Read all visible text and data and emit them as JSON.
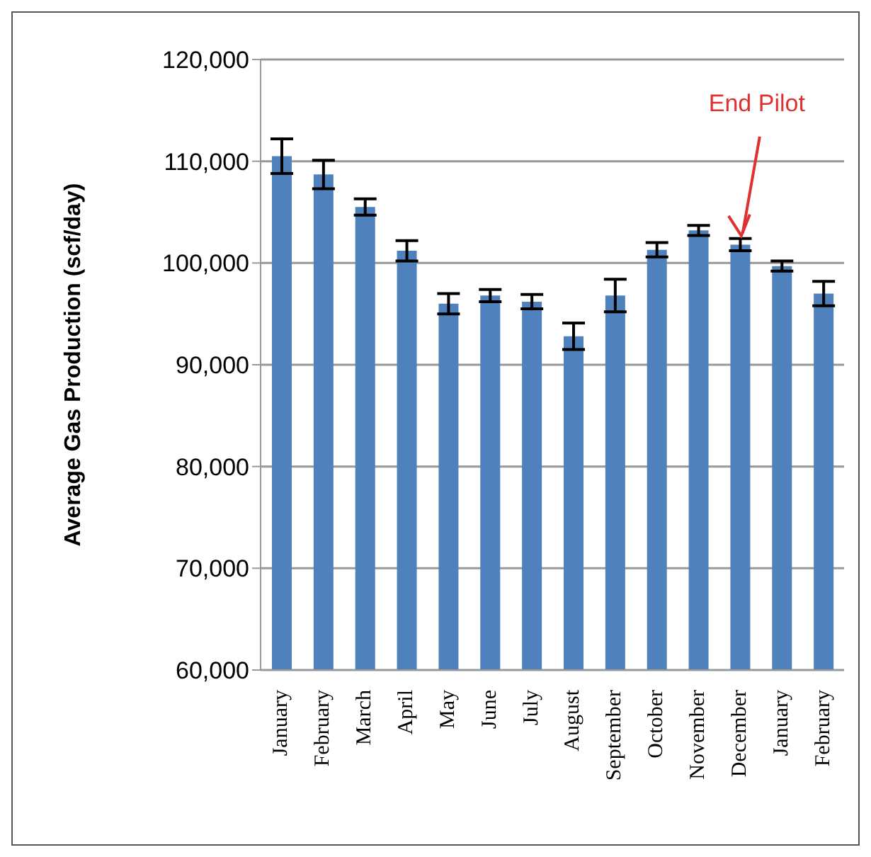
{
  "chart_data": {
    "type": "bar",
    "ylabel": "Average  Gas Production (scf/day)",
    "categories": [
      "January",
      "February",
      "March",
      "April",
      "May",
      "June",
      "July",
      "August",
      "September",
      "October",
      "November",
      "December",
      "January",
      "February"
    ],
    "values": [
      110500,
      108700,
      105500,
      101200,
      96000,
      96800,
      96200,
      92800,
      96800,
      101300,
      103200,
      101800,
      99700,
      97000
    ],
    "errors": [
      1700,
      1400,
      800,
      1000,
      1000,
      600,
      700,
      1300,
      1600,
      700,
      500,
      600,
      500,
      1200
    ],
    "color": "#4f81bd",
    "ylim": [
      60000,
      120000
    ],
    "yticks": [
      {
        "value": 60000,
        "label": "60,000"
      },
      {
        "value": 70000,
        "label": "70,000"
      },
      {
        "value": 80000,
        "label": "80,000"
      },
      {
        "value": 90000,
        "label": "90,000"
      },
      {
        "value": 100000,
        "label": "100,000"
      },
      {
        "value": 110000,
        "label": "110,000"
      },
      {
        "value": 120000,
        "label": "120,000"
      }
    ],
    "grid": "y",
    "annotations": [
      {
        "text": "End Pilot",
        "x": "December",
        "y": 102400
      }
    ]
  }
}
